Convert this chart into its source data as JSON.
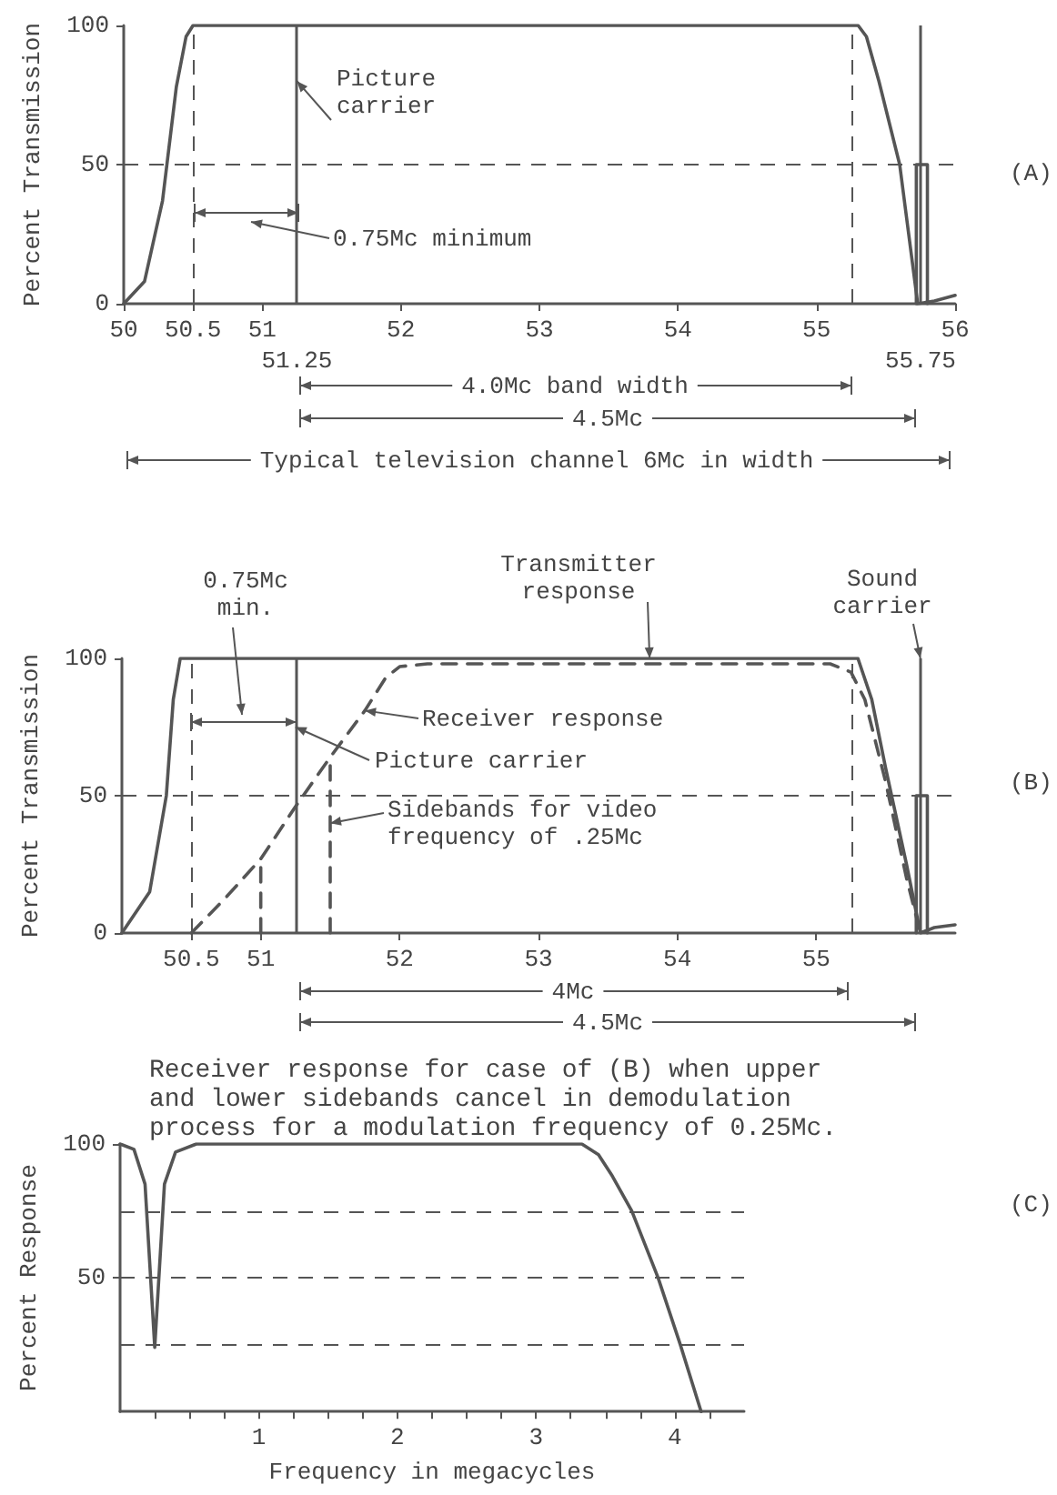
{
  "chart_data": [
    {
      "type": "line",
      "xlim": [
        50,
        56
      ],
      "ylim": [
        0,
        100
      ],
      "xticks": [
        {
          "value": 50,
          "label": "50"
        },
        50.5,
        51,
        52,
        53,
        54,
        55,
        {
          "value": 56,
          "label": "56"
        }
      ],
      "yticks": [
        0,
        50,
        100
      ],
      "ylabel": "Percent Transmission",
      "marker": "none",
      "grid": false,
      "series": [
        {
          "color": "#555555",
          "x": [
            50,
            50.15,
            50.28,
            50.38,
            50.45,
            50.5,
            55.3,
            55.36,
            55.45,
            55.6,
            55.73,
            55.85,
            56
          ],
          "values": [
            0,
            8,
            37,
            78,
            96,
            100,
            100,
            96,
            80,
            50,
            0,
            1,
            3
          ]
        },
        {
          "color": "#555555",
          "x": [
            55.72,
            55.72,
            55.8,
            55.8
          ],
          "values": [
            0,
            50,
            50,
            0
          ]
        }
      ],
      "ref_lines": [
        {
          "axis": "y",
          "value": 50,
          "line_style": "dashed"
        },
        {
          "axis": "x",
          "value": 50.5,
          "line_style": "dashed"
        },
        {
          "axis": "x",
          "value": 51.25,
          "label": "51.25",
          "line_style": "solid"
        },
        {
          "axis": "x",
          "value": 55.25,
          "line_style": "dashed"
        },
        {
          "axis": "x",
          "value": 55.75,
          "label": "55.75",
          "line_style": "solid"
        }
      ],
      "annotations": [
        {
          "text": "Picture carrier",
          "x": 51.25,
          "y": 80
        },
        "0.75Mc minimum",
        "4.0Mc band width",
        "4.5Mc",
        "Typical television channel 6Mc in width",
        "(A)"
      ]
    },
    {
      "type": "line",
      "xlim": [
        50,
        56
      ],
      "ylim": [
        0,
        100
      ],
      "xticks": [
        50.5,
        51,
        52,
        53,
        54,
        55
      ],
      "yticks": [
        0,
        50,
        100
      ],
      "ylabel": "Percent Transmission",
      "marker": "none",
      "grid": false,
      "series": [
        {
          "color": "#555555",
          "x": [
            50,
            50.2,
            50.32,
            50.37,
            50.42,
            55.3,
            55.4,
            55.5,
            55.65,
            55.75,
            55.85,
            56
          ],
          "values": [
            0,
            15,
            50,
            85,
            100,
            100,
            85,
            60,
            25,
            0,
            2,
            3
          ]
        },
        {
          "color": "#555555",
          "line_style": "dashed",
          "x": [
            50.5,
            50.75,
            51,
            51.25,
            51.5,
            51.75,
            51.9,
            52,
            52.2,
            55.1,
            55.25,
            55.35,
            55.5,
            55.65,
            55.75
          ],
          "values": [
            0,
            13,
            27,
            46,
            64,
            81,
            93,
            97,
            98,
            98,
            95,
            85,
            55,
            20,
            0
          ]
        },
        {
          "color": "#555555",
          "line_style": "dashed",
          "x": [
            51,
            51
          ],
          "values": [
            0,
            27
          ]
        },
        {
          "color": "#555555",
          "line_style": "dashed",
          "x": [
            51.5,
            51.5
          ],
          "values": [
            0,
            64
          ]
        },
        {
          "color": "#555555",
          "x": [
            55.72,
            55.72,
            55.8,
            55.8
          ],
          "values": [
            0,
            50,
            50,
            0
          ]
        }
      ],
      "ref_lines": [
        {
          "axis": "y",
          "value": 50,
          "line_style": "dashed"
        },
        {
          "axis": "x",
          "value": 50.5,
          "line_style": "dashed"
        },
        {
          "axis": "x",
          "value": 51.25,
          "line_style": "solid"
        },
        {
          "axis": "x",
          "value": 55.25,
          "line_style": "dashed"
        },
        {
          "axis": "x",
          "value": 55.75,
          "line_style": "solid"
        }
      ],
      "annotations": [
        "0.75Mc min.",
        {
          "text": "Transmitter response",
          "x": 53.8,
          "y": 100
        },
        {
          "text": "Sound carrier",
          "x": 55.75,
          "y": 100
        },
        {
          "text": "Receiver response",
          "x": 51.75,
          "y": 81
        },
        {
          "text": "Picture carrier",
          "x": 51.25,
          "y": 75
        },
        {
          "text": "Sidebands for video frequency of .25Mc",
          "x": 51.5,
          "y": 40
        },
        "4Mc",
        "4.5Mc",
        "(B)"
      ]
    },
    {
      "type": "line",
      "title": "Receiver response for case of (B) when upper and lower sidebands cancel in demodulation process for a modulation frequency of 0.25Mc.",
      "xlabel": "Frequency in megacycles",
      "ylabel": "Percent Response",
      "xlim": [
        0,
        4.5
      ],
      "ylim": [
        0,
        100
      ],
      "xticks": [
        {
          "value": 0.25,
          "label": null
        },
        {
          "value": 0.5,
          "label": null
        },
        {
          "value": 0.75,
          "label": null
        },
        1,
        {
          "value": 1.25,
          "label": null
        },
        {
          "value": 1.5,
          "label": null
        },
        {
          "value": 1.75,
          "label": null
        },
        2,
        {
          "value": 2.25,
          "label": null
        },
        {
          "value": 2.5,
          "label": null
        },
        {
          "value": 2.75,
          "label": null
        },
        3,
        {
          "value": 3.25,
          "label": null
        },
        {
          "value": 3.5,
          "label": null
        },
        {
          "value": 3.75,
          "label": null
        },
        4,
        {
          "value": 4.25,
          "label": null
        }
      ],
      "yticks": [
        50,
        100
      ],
      "marker": "none",
      "grid": false,
      "series": [
        {
          "color": "#555555",
          "x": [
            0,
            0.1,
            0.18,
            0.25,
            0.32,
            0.4,
            0.55,
            3.33,
            3.45,
            3.55,
            3.69,
            3.88,
            4.04,
            4.19
          ],
          "values": [
            100,
            98,
            85,
            24,
            85,
            97,
            100,
            100,
            96,
            88,
            75,
            50,
            25,
            0
          ]
        }
      ],
      "ref_lines": [
        {
          "axis": "y",
          "value": 75,
          "line_style": "dashed"
        },
        {
          "axis": "y",
          "value": 50,
          "line_style": "dashed"
        },
        {
          "axis": "y",
          "value": 25,
          "line_style": "dashed"
        }
      ],
      "annotations": [
        "(C)"
      ]
    }
  ]
}
